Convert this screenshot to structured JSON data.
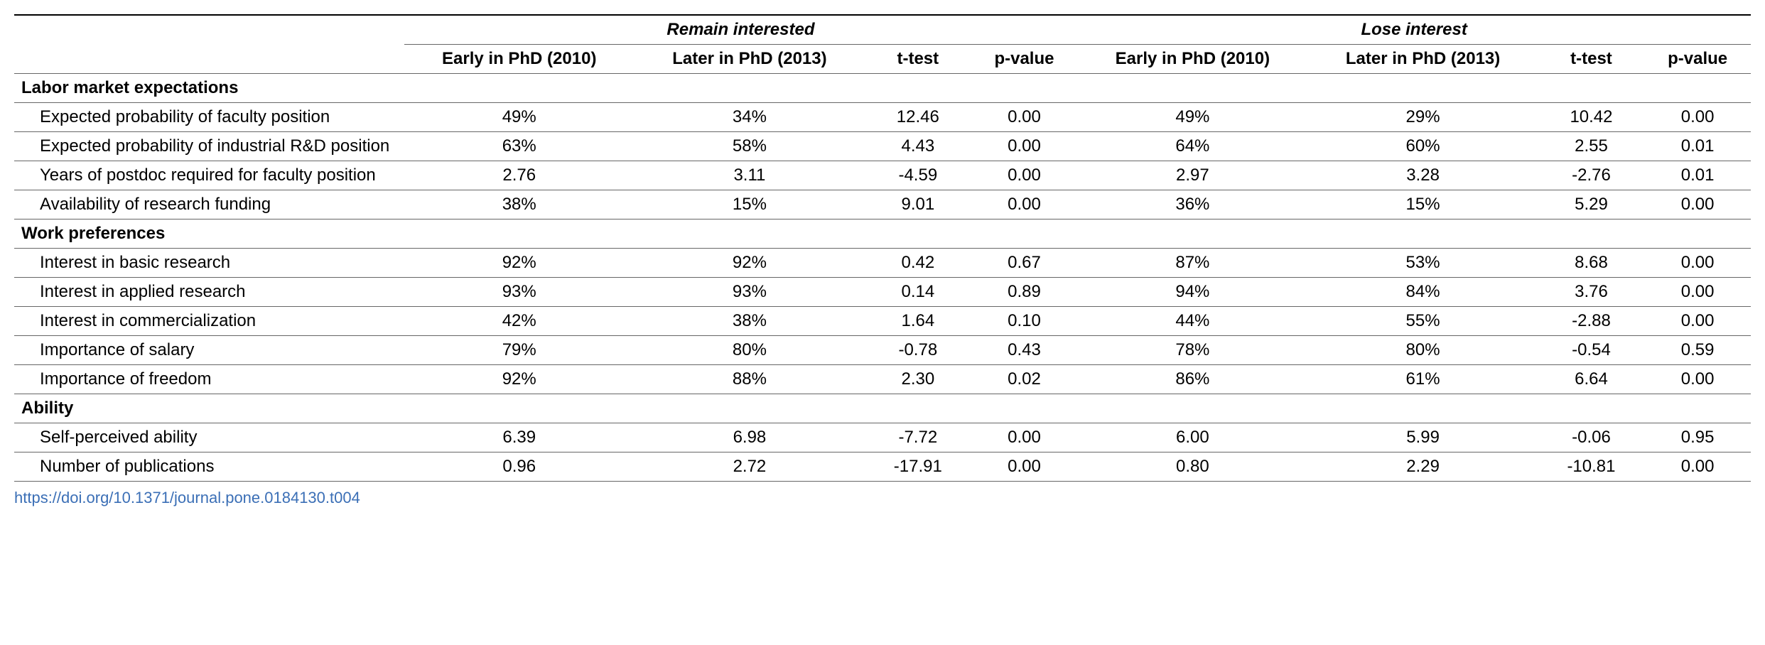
{
  "headers": {
    "group1": "Remain interested",
    "group2": "Lose interest",
    "sub_early": "Early in PhD (2010)",
    "sub_later": "Later in PhD (2013)",
    "sub_ttest": "t-test",
    "sub_pvalue": "p-value"
  },
  "sections": {
    "s1": "Labor market expectations",
    "s2": "Work preferences",
    "s3": "Ability"
  },
  "rows": {
    "r1": {
      "label": "Expected probability of faculty position",
      "a1": "49%",
      "a2": "34%",
      "a3": "12.46",
      "a4": "0.00",
      "b1": "49%",
      "b2": "29%",
      "b3": "10.42",
      "b4": "0.00"
    },
    "r2": {
      "label": "Expected probability of industrial R&D position",
      "a1": "63%",
      "a2": "58%",
      "a3": "4.43",
      "a4": "0.00",
      "b1": "64%",
      "b2": "60%",
      "b3": "2.55",
      "b4": "0.01"
    },
    "r3": {
      "label": "Years of postdoc required for faculty position",
      "a1": "2.76",
      "a2": "3.11",
      "a3": "-4.59",
      "a4": "0.00",
      "b1": "2.97",
      "b2": "3.28",
      "b3": "-2.76",
      "b4": "0.01"
    },
    "r4": {
      "label": "Availability of research funding",
      "a1": "38%",
      "a2": "15%",
      "a3": "9.01",
      "a4": "0.00",
      "b1": "36%",
      "b2": "15%",
      "b3": "5.29",
      "b4": "0.00"
    },
    "r5": {
      "label": "Interest in basic research",
      "a1": "92%",
      "a2": "92%",
      "a3": "0.42",
      "a4": "0.67",
      "b1": "87%",
      "b2": "53%",
      "b3": "8.68",
      "b4": "0.00"
    },
    "r6": {
      "label": "Interest in applied research",
      "a1": "93%",
      "a2": "93%",
      "a3": "0.14",
      "a4": "0.89",
      "b1": "94%",
      "b2": "84%",
      "b3": "3.76",
      "b4": "0.00"
    },
    "r7": {
      "label": "Interest in commercialization",
      "a1": "42%",
      "a2": "38%",
      "a3": "1.64",
      "a4": "0.10",
      "b1": "44%",
      "b2": "55%",
      "b3": "-2.88",
      "b4": "0.00"
    },
    "r8": {
      "label": "Importance of salary",
      "a1": "79%",
      "a2": "80%",
      "a3": "-0.78",
      "a4": "0.43",
      "b1": "78%",
      "b2": "80%",
      "b3": "-0.54",
      "b4": "0.59"
    },
    "r9": {
      "label": "Importance of freedom",
      "a1": "92%",
      "a2": "88%",
      "a3": "2.30",
      "a4": "0.02",
      "b1": "86%",
      "b2": "61%",
      "b3": "6.64",
      "b4": "0.00"
    },
    "r10": {
      "label": "Self-perceived ability",
      "a1": "6.39",
      "a2": "6.98",
      "a3": "-7.72",
      "a4": "0.00",
      "b1": "6.00",
      "b2": "5.99",
      "b3": "-0.06",
      "b4": "0.95"
    },
    "r11": {
      "label": "Number of publications",
      "a1": "0.96",
      "a2": "2.72",
      "a3": "-17.91",
      "a4": "0.00",
      "b1": "0.80",
      "b2": "2.29",
      "b3": "-10.81",
      "b4": "0.00"
    }
  },
  "doi": "https://doi.org/10.1371/journal.pone.0184130.t004"
}
